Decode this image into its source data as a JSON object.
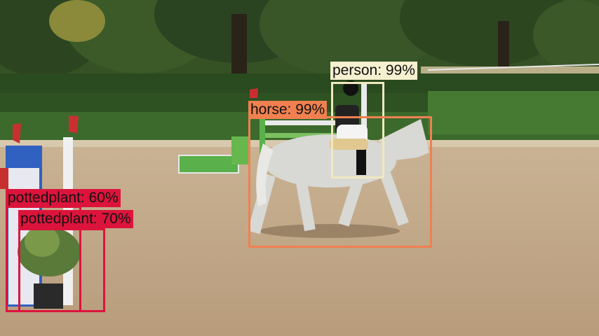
{
  "detections": [
    {
      "class": "person",
      "score": "99%",
      "label": "person: 99%",
      "color": "#f5f0d0",
      "box_color": "#f0e8c0"
    },
    {
      "class": "horse",
      "score": "99%",
      "label": "horse: 99%",
      "color": "#f08050",
      "box_color": "#f08050"
    },
    {
      "class": "pottedplant",
      "score": "60%",
      "label": "pottedplant: 60%",
      "color": "#dc143c",
      "box_color": "#dc143c"
    },
    {
      "class": "pottedplant",
      "score": "70%",
      "label": "pottedplant: 70%",
      "color": "#dc143c",
      "box_color": "#dc143c"
    }
  ]
}
